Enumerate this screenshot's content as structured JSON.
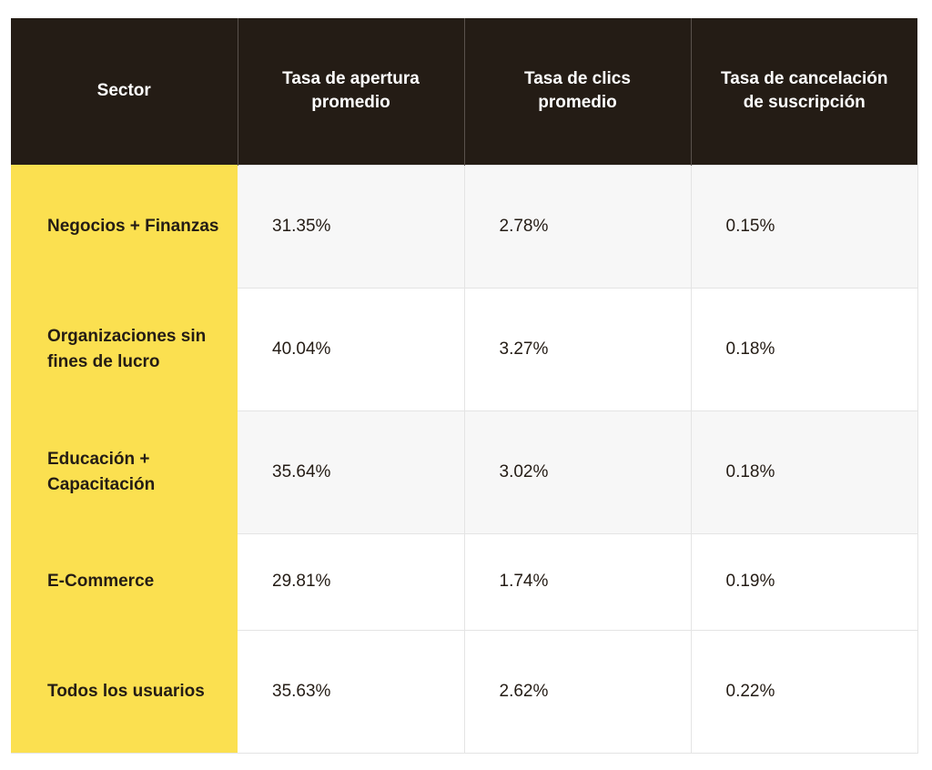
{
  "table": {
    "headers": [
      "Sector",
      "Tasa de apertura promedio",
      "Tasa de clics promedio",
      "Tasa de cancelación de suscripción"
    ],
    "rows": [
      {
        "sector": "Negocios + Finanzas",
        "open_rate": "31.35%",
        "click_rate": "2.78%",
        "unsub_rate": "0.15%"
      },
      {
        "sector": "Organizaciones sin fines de lucro",
        "open_rate": "40.04%",
        "click_rate": "3.27%",
        "unsub_rate": "0.18%"
      },
      {
        "sector": "Educación + Capacitación",
        "open_rate": "35.64%",
        "click_rate": "3.02%",
        "unsub_rate": "0.18%"
      },
      {
        "sector": "E-Commerce",
        "open_rate": "29.81%",
        "click_rate": "1.74%",
        "unsub_rate": "0.19%"
      },
      {
        "sector": "Todos los usuarios",
        "open_rate": "35.63%",
        "click_rate": "2.62%",
        "unsub_rate": "0.22%"
      }
    ]
  },
  "colors": {
    "header_bg": "#241c15",
    "sector_bg": "#fbe050",
    "row_alt_bg": "#f7f7f7"
  }
}
